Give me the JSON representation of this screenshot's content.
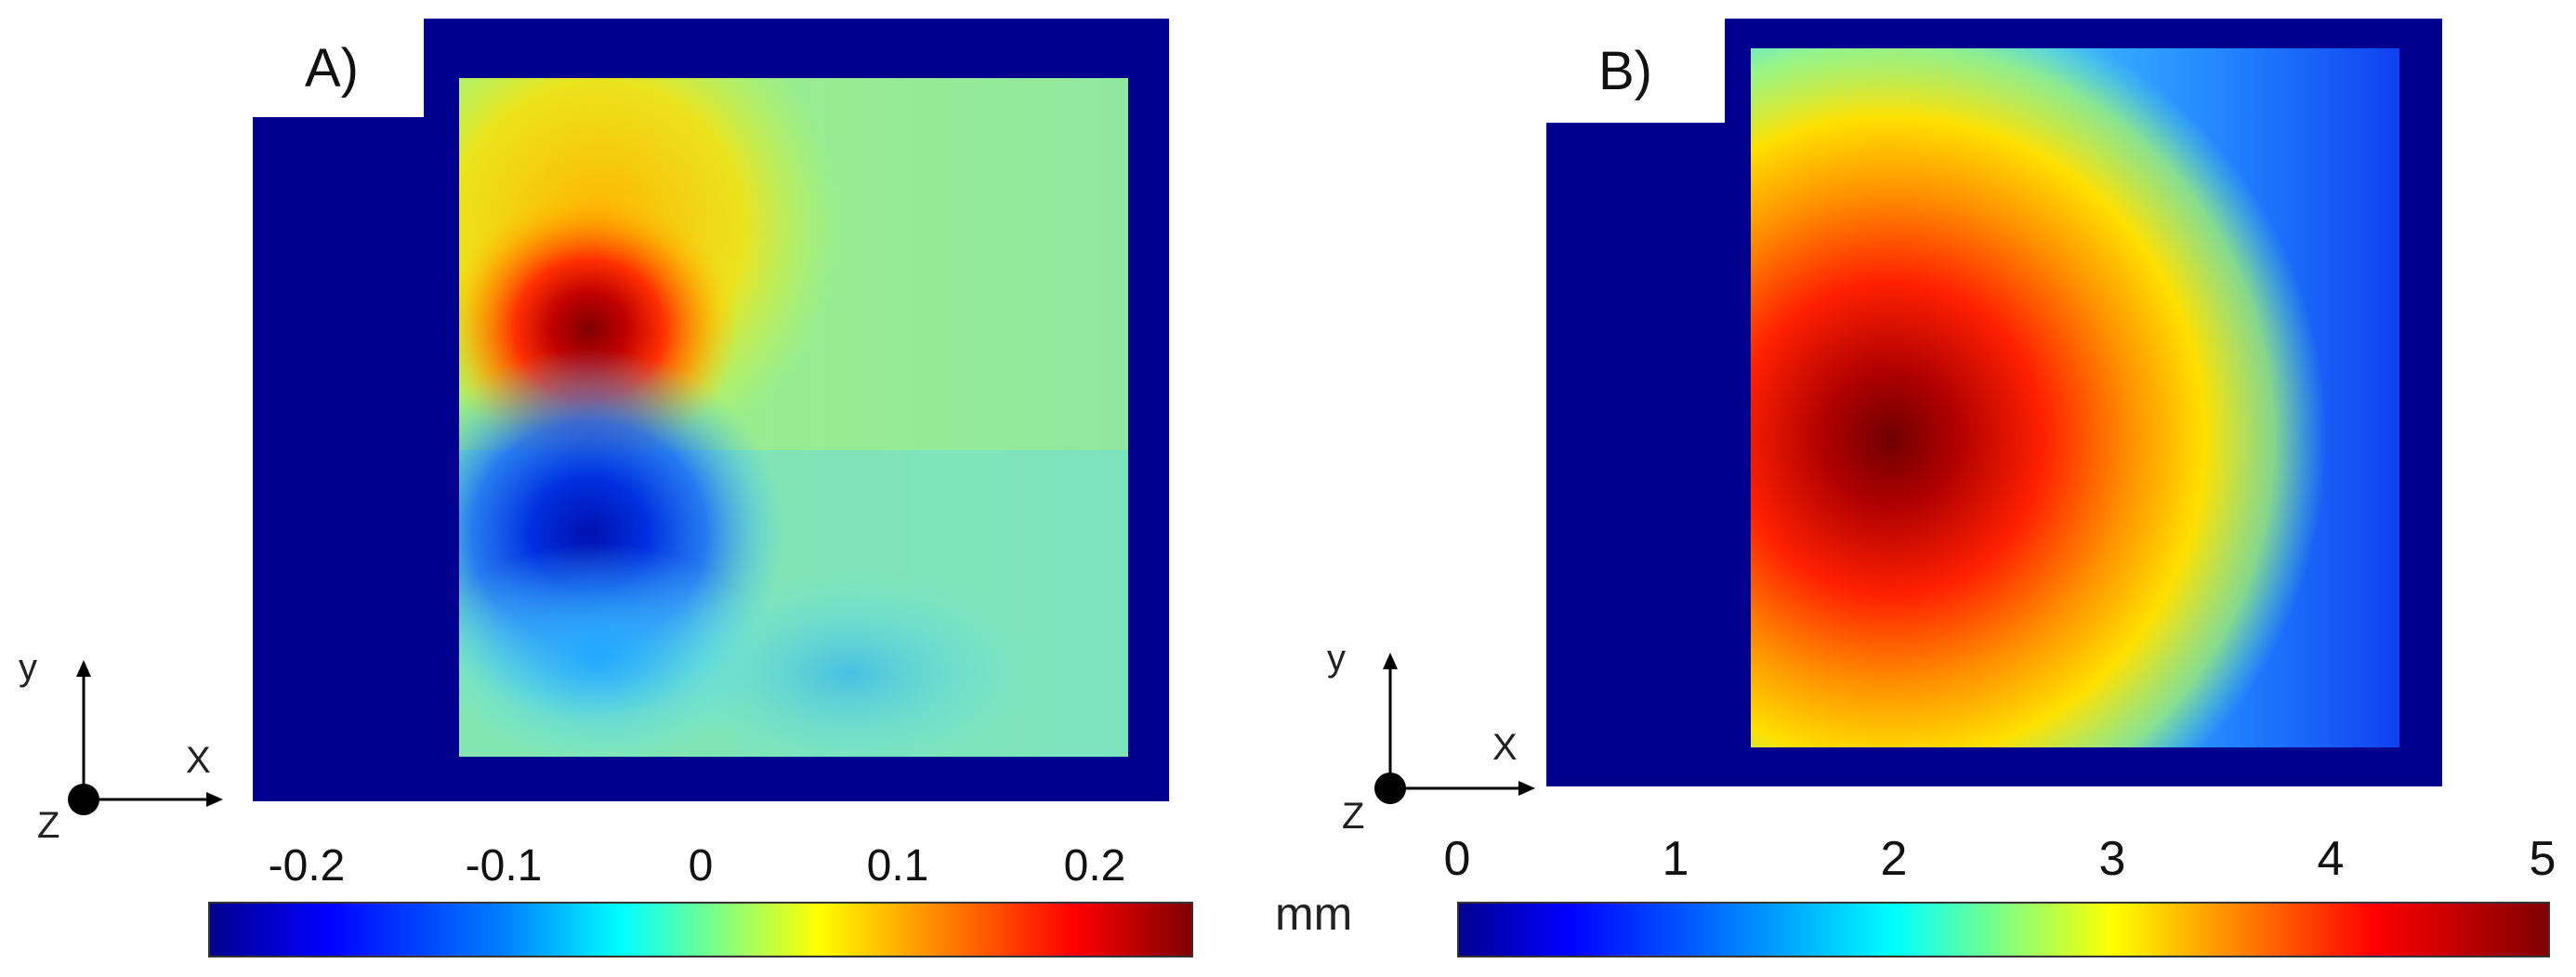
{
  "panels": [
    {
      "label": "A)",
      "colormap": "jet",
      "colorbar": {
        "min": -0.25,
        "max": 0.25,
        "ticks": [
          "-0.2",
          "-0.1",
          "0",
          "0.1",
          "0.2"
        ],
        "tick_values": [
          -0.2,
          -0.1,
          0,
          0.1,
          0.2
        ]
      }
    },
    {
      "label": "B)",
      "colormap": "jet",
      "colorbar": {
        "min": 0,
        "max": 5,
        "ticks": [
          "0",
          "1",
          "2",
          "3",
          "4",
          "5"
        ],
        "tick_values": [
          0,
          1,
          2,
          3,
          4,
          5
        ]
      }
    }
  ],
  "axes_labels": {
    "y": "y",
    "x": "X",
    "z": "Z"
  },
  "unit": "mm",
  "colors": {
    "background": "#00008f",
    "colormap_stops": [
      "#00008f",
      "#0000ff",
      "#00ffff",
      "#ffff00",
      "#ff0000",
      "#800000"
    ]
  },
  "chart_data": [
    {
      "type": "heatmap",
      "title": "A)",
      "colorbar_label": "mm",
      "range": [
        -0.25,
        0.25
      ],
      "features": [
        {
          "kind": "max",
          "value": 0.25,
          "location": "upper-left"
        },
        {
          "kind": "min",
          "value": -0.17,
          "location": "lower-left"
        }
      ],
      "background_value": 0.02
    },
    {
      "type": "heatmap",
      "title": "B)",
      "colorbar_label": "mm",
      "range": [
        0,
        5
      ],
      "features": [
        {
          "kind": "max",
          "value": 4.8,
          "location": "center-left"
        }
      ],
      "background_value": 1.6
    }
  ]
}
